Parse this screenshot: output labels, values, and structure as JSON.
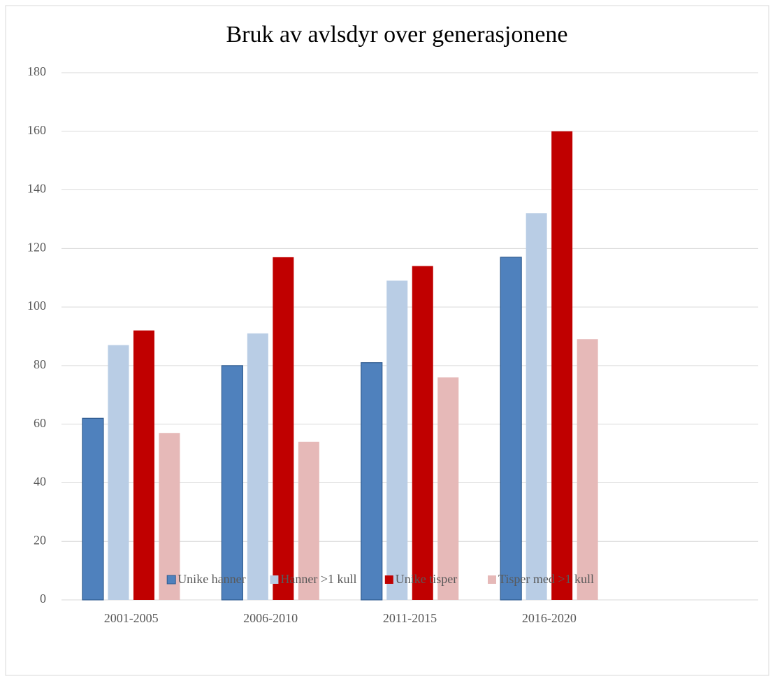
{
  "chart_data": {
    "type": "bar",
    "title": "Bruk av avlsdyr over generasjonene",
    "categories": [
      "2001-2005",
      "2006-2010",
      "2011-2015",
      "2016-2020",
      null
    ],
    "series": [
      {
        "name": "Unike hanner",
        "color": "#4f81bd",
        "values": [
          62,
          80,
          81,
          117,
          null
        ]
      },
      {
        "name": "Hanner >1 kull",
        "color": "#b9cde5",
        "values": [
          87,
          91,
          109,
          132,
          null
        ]
      },
      {
        "name": "Unike tisper",
        "color": "#c00000",
        "values": [
          92,
          117,
          114,
          160,
          null
        ]
      },
      {
        "name": "Tisper med >1 kull",
        "color": "#e6b9b8",
        "values": [
          57,
          54,
          76,
          89,
          null
        ]
      }
    ],
    "ylim": [
      0,
      180
    ],
    "yticks": [
      0,
      20,
      40,
      60,
      80,
      100,
      120,
      140,
      160,
      180
    ],
    "grid": true,
    "legend": "bottom"
  }
}
